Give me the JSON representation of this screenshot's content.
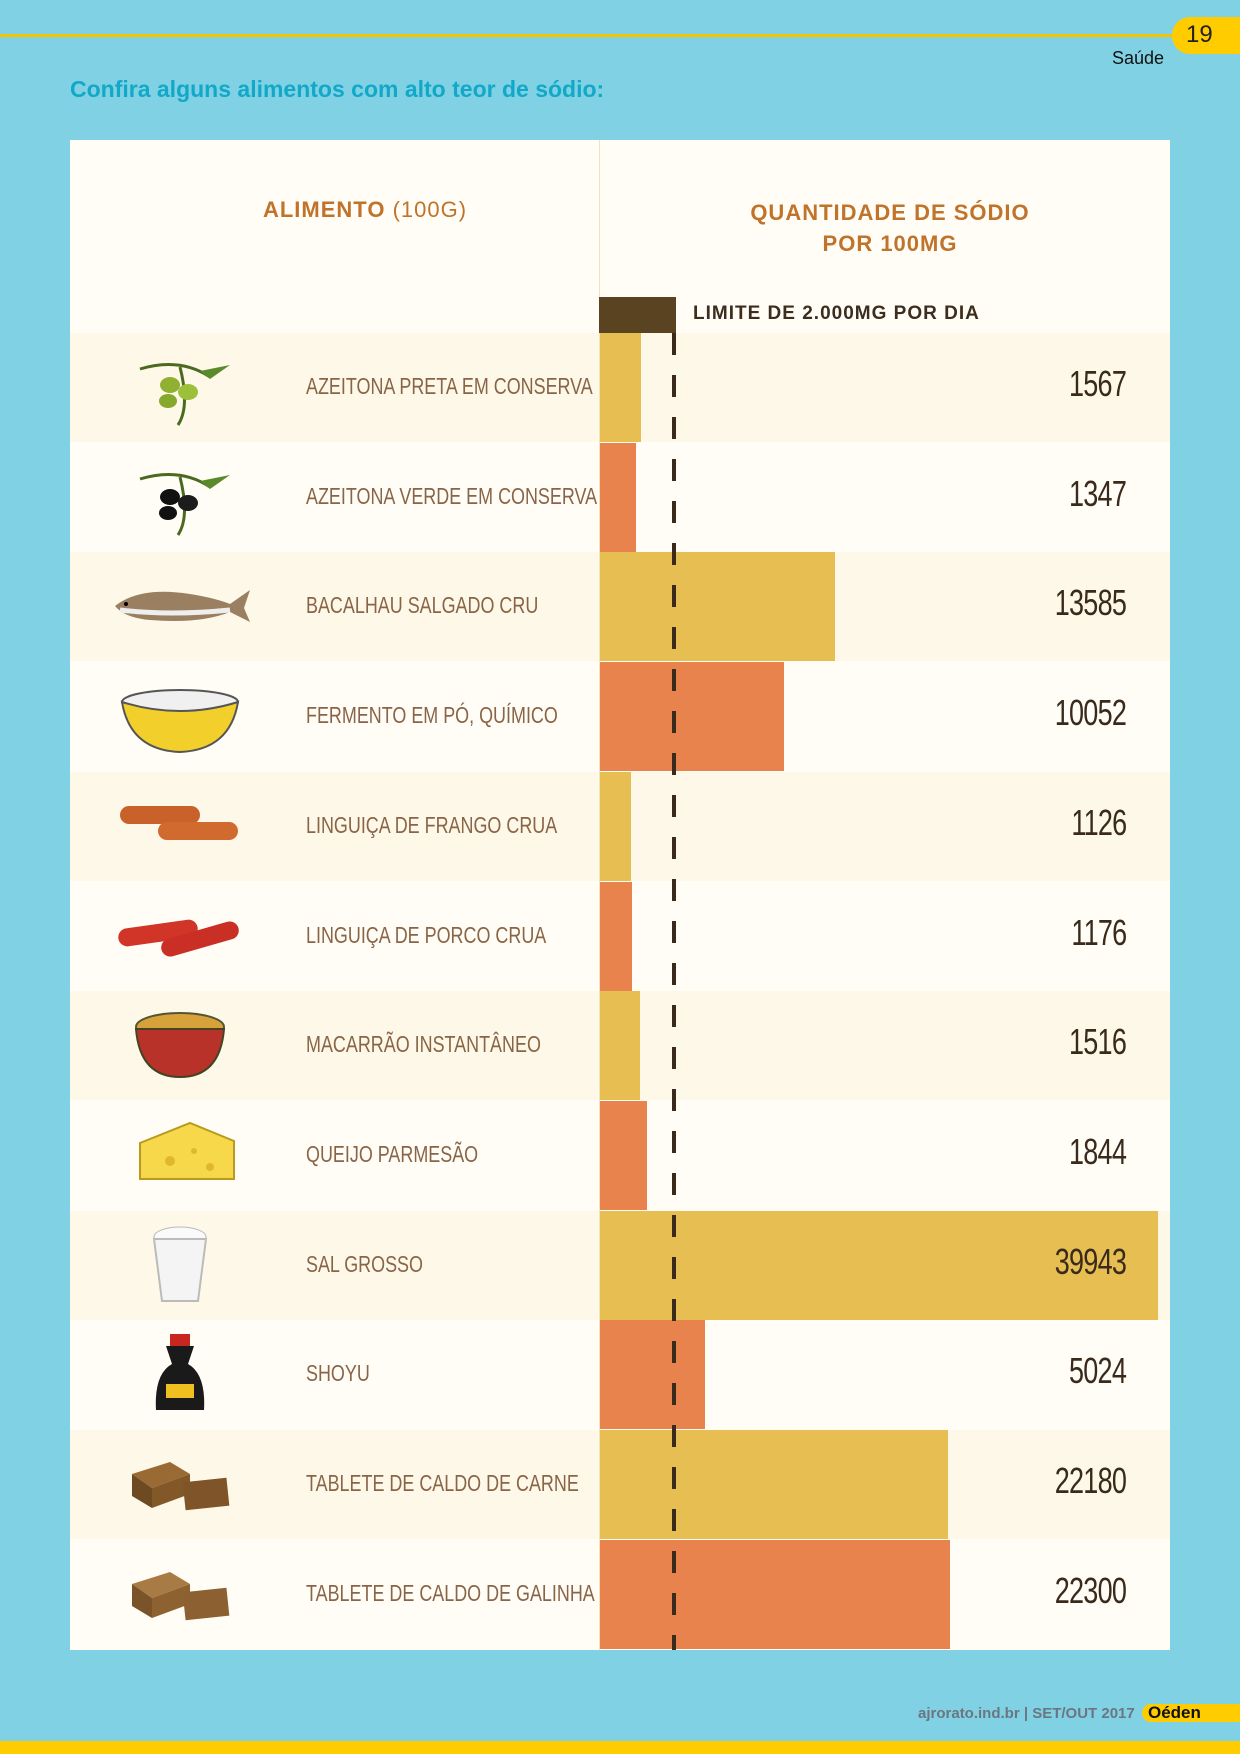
{
  "header": {
    "page_number": "19",
    "section": "Saúde",
    "title": "Confira alguns alimentos com alto teor de sódio:"
  },
  "chart_data": {
    "type": "bar",
    "orientation": "horizontal",
    "column_headers": {
      "food": "ALIMENTO",
      "food_unit": "(100G)",
      "quantity": "QUANTIDADE DE SÓDIO",
      "quantity_unit": "POR 100MG"
    },
    "reference_line": {
      "label": "LIMITE DE 2.000MG POR DIA",
      "value": 2000
    },
    "categories": [
      "AZEITONA PRETA EM CONSERVA",
      "AZEITONA VERDE EM CONSERVA",
      "BACALHAU SALGADO CRU",
      "FERMENTO EM PÓ, QUÍMICO",
      "LINGUIÇA DE FRANGO CRUA",
      "LINGUIÇA DE PORCO CRUA",
      "MACARRÃO INSTANTÂNEO",
      "QUEIJO PARMESÃO",
      "SAL GROSSO",
      "SHOYU",
      "TABLETE DE CALDO DE CARNE",
      "TABLETE DE CALDO DE GALINHA"
    ],
    "values": [
      1567,
      1347,
      13585,
      10052,
      1126,
      1176,
      1516,
      1844,
      39943,
      5024,
      22180,
      22300
    ],
    "icons": [
      "black-olive-icon",
      "green-olive-icon",
      "codfish-icon",
      "baking-powder-bowl-icon",
      "chicken-sausage-icon",
      "pork-sausage-icon",
      "instant-noodles-icon",
      "parmesan-cheese-icon",
      "coarse-salt-icon",
      "soy-sauce-icon",
      "beef-stock-cube-icon",
      "chicken-stock-cube-icon"
    ],
    "colors": {
      "bar_odd": "#E6BE52",
      "bar_even": "#E8834E",
      "row_odd": "#FDF8E8",
      "row_even": "#FFFDF6",
      "reference": "#3A2A1C"
    }
  },
  "footer": {
    "text": "ajrorato.ind.br | SET/OUT 2017",
    "brand": "Oéden"
  }
}
